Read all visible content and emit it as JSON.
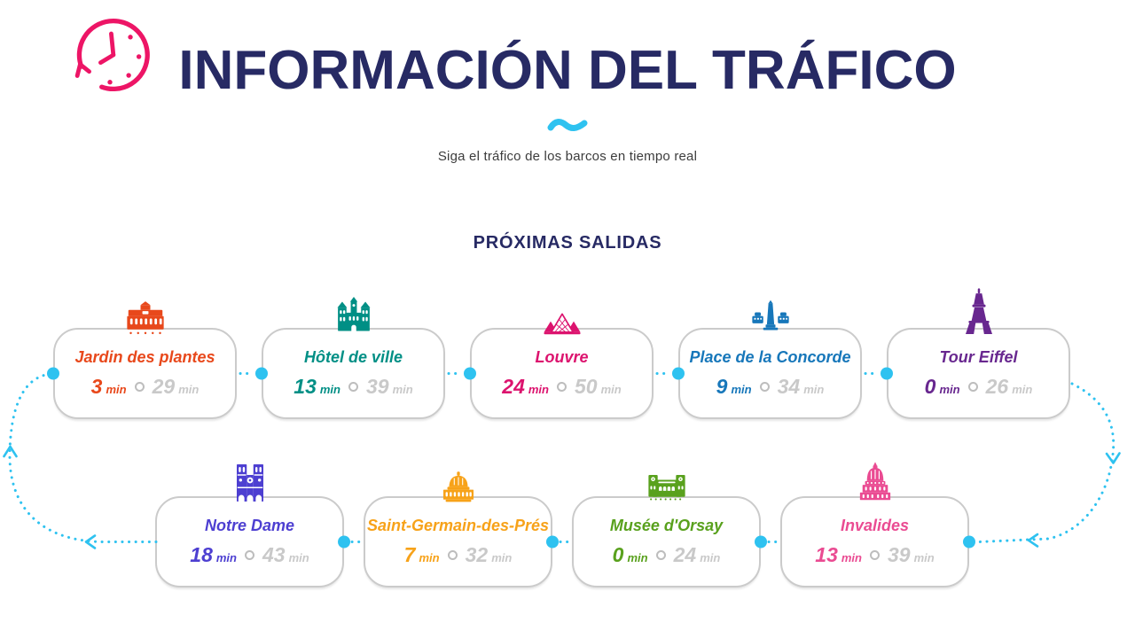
{
  "page": {
    "title": "INFORMACIÓN DEL TRÁFICO",
    "subtitle": "Siga el tráfico de los barcos en tiempo real",
    "departures_heading": "PRÓXIMAS SALIDAS",
    "time_unit": "min",
    "colors": {
      "heading_navy": "#272a64",
      "accent_cyan": "#2ec2f0",
      "clock_pink": "#ed1566",
      "subtitle_gray": "#3c3c3c",
      "muted_time_gray": "#c9c9c9",
      "card_border_gray": "#cbcbcb"
    }
  },
  "stops": {
    "top_row": [
      {
        "name": "Jardin des plantes",
        "icon": "jardin-des-plantes-building-icon",
        "color": "#e8481b",
        "next_min": "3",
        "later_min": "29"
      },
      {
        "name": "Hôtel de ville",
        "icon": "hotel-de-ville-building-icon",
        "color": "#008f85",
        "next_min": "13",
        "later_min": "39"
      },
      {
        "name": "Louvre",
        "icon": "louvre-pyramid-icon",
        "color": "#dc136e",
        "next_min": "24",
        "later_min": "50"
      },
      {
        "name": "Place de la Concorde",
        "icon": "place-de-la-concorde-obelisk-icon",
        "color": "#1777ba",
        "next_min": "9",
        "later_min": "34"
      },
      {
        "name": "Tour Eiffel",
        "icon": "eiffel-tower-icon",
        "color": "#68278f",
        "next_min": "0",
        "later_min": "26"
      }
    ],
    "bottom_row": [
      {
        "name": "Notre Dame",
        "icon": "notre-dame-cathedral-icon",
        "color": "#4d3fd1",
        "next_min": "18",
        "later_min": "43"
      },
      {
        "name": "Saint-Germain-des-Prés",
        "icon": "saint-germain-des-pres-dome-icon",
        "color": "#f7a219",
        "next_min": "7",
        "later_min": "32"
      },
      {
        "name": "Musée d'Orsay",
        "icon": "musee-d-orsay-building-icon",
        "color": "#59a11d",
        "next_min": "0",
        "later_min": "24"
      },
      {
        "name": "Invalides",
        "icon": "invalides-dome-icon",
        "color": "#ea4b92",
        "next_min": "13",
        "later_min": "39"
      }
    ]
  }
}
